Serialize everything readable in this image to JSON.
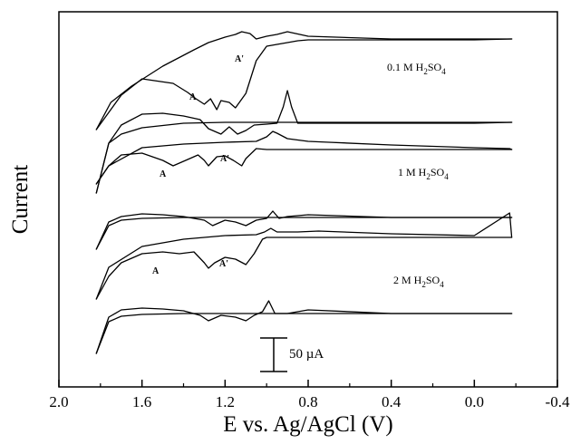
{
  "chart_data": {
    "type": "line",
    "title": "",
    "xlabel": "E vs. Ag/AgCl (V)",
    "ylabel": "Current",
    "xlim": [
      2.0,
      -0.4
    ],
    "x_ticks": [
      "2.0",
      "1.6",
      "1.2",
      "0.8",
      "0.4",
      "0.0",
      "-0.4"
    ],
    "x_tick_values": [
      2.0,
      1.6,
      1.2,
      0.8,
      0.4,
      0.0,
      -0.4
    ],
    "y_ticks": [],
    "grid": false,
    "legend": "none",
    "scale_bar": {
      "label": "50 µA",
      "value": 50,
      "unit": "µA"
    },
    "panels": [
      {
        "electrolyte_label": "0.1 M H2SO4",
        "electrolyte_text": "0.1 M H",
        "electrolyte_sub": "2",
        "electrolyte_tail": "SO",
        "electrolyte_sub2": "4",
        "peak_labels": [
          "A",
          "A'"
        ],
        "anodic_first_x": [
          1.82,
          1.7,
          1.6,
          1.45,
          1.38,
          1.34,
          1.3,
          1.27,
          1.24,
          1.22,
          1.18,
          1.15,
          1.1,
          1.05,
          1.0,
          0.95,
          0.9,
          0.85,
          0.8,
          0.4,
          0.0,
          -0.18
        ],
        "anodic_first_y": [
          -8,
          30,
          48,
          43,
          33,
          26,
          20,
          26,
          14,
          24,
          22,
          16,
          32,
          68,
          84,
          86,
          88,
          90,
          91,
          91,
          91,
          92
        ],
        "cathodic_first_x": [
          -0.18,
          0.0,
          0.4,
          0.8,
          0.9,
          0.95,
          1.0,
          1.05,
          1.08,
          1.12,
          1.15,
          1.2,
          1.28,
          1.35,
          1.5,
          1.65,
          1.75,
          1.82
        ],
        "cathodic_first_y": [
          92,
          92,
          92,
          95,
          100,
          97,
          95,
          92,
          98,
          100,
          97,
          94,
          88,
          80,
          62,
          40,
          22,
          -8
        ],
        "anodic_second_x": [
          1.82,
          1.76,
          1.7,
          1.6,
          1.5,
          1.4,
          1.32,
          1.28,
          1.22,
          1.18,
          1.14,
          1.1,
          1.06,
          1.0,
          0.95,
          0.92,
          0.9,
          0.88,
          0.85,
          0.4,
          0.0,
          -0.18
        ],
        "anodic_second_y": [
          -55,
          0,
          20,
          32,
          33,
          30,
          26,
          16,
          10,
          18,
          10,
          14,
          20,
          21,
          22,
          40,
          58,
          40,
          22,
          22,
          22,
          23
        ],
        "cathodic_second_x": [
          -0.18,
          0.4,
          0.8,
          1.1,
          1.2,
          1.4,
          1.6,
          1.7,
          1.76,
          1.82
        ],
        "cathodic_second_y": [
          23,
          23,
          23,
          23,
          23,
          22,
          17,
          10,
          0,
          -55
        ]
      },
      {
        "electrolyte_label": "1 M H2SO4",
        "electrolyte_text": "1 M H",
        "electrolyte_sub": "2",
        "electrolyte_tail": "SO",
        "electrolyte_sub2": "4",
        "peak_labels": [
          "A",
          "A'"
        ],
        "anodic_first_x": [
          1.82,
          1.76,
          1.7,
          1.6,
          1.5,
          1.45,
          1.38,
          1.33,
          1.3,
          1.28,
          1.24,
          1.2,
          1.16,
          1.12,
          1.1,
          1.05,
          1.0,
          0.95,
          0.9,
          0.4,
          0.0,
          -0.18
        ],
        "anodic_first_y": [
          -10,
          10,
          22,
          24,
          16,
          10,
          17,
          22,
          16,
          10,
          20,
          21,
          16,
          10,
          18,
          29,
          28,
          28,
          28,
          28,
          28,
          28
        ],
        "cathodic_first_x": [
          -0.18,
          -0.17,
          0.0,
          0.4,
          0.7,
          0.8,
          0.9,
          0.95,
          0.97,
          1.0,
          1.05,
          1.2,
          1.4,
          1.6,
          1.76,
          1.82
        ],
        "cathodic_first_y": [
          28,
          29,
          30,
          33,
          36,
          37,
          40,
          46,
          48,
          42,
          37,
          36,
          34,
          30,
          10,
          -10
        ],
        "anodic_second_x": [
          1.82,
          1.76,
          1.7,
          1.6,
          1.5,
          1.4,
          1.3,
          1.26,
          1.2,
          1.15,
          1.1,
          1.05,
          1.0,
          0.97,
          0.94,
          0.9,
          0.8,
          0.4,
          0.0,
          -0.18
        ],
        "anodic_second_y": [
          -30,
          0,
          6,
          9,
          8,
          6,
          2,
          -4,
          2,
          0,
          -4,
          2,
          4,
          12,
          4,
          6,
          8,
          5,
          5,
          5
        ],
        "cathodic_second_x": [
          -0.18,
          0.4,
          1.0,
          1.4,
          1.6,
          1.7,
          1.76,
          1.82
        ],
        "cathodic_second_y": [
          5,
          5,
          5,
          5,
          4,
          2,
          -4,
          -30
        ]
      },
      {
        "electrolyte_label": "2 M H2SO4",
        "electrolyte_text": "2 M H",
        "electrolyte_sub": "2",
        "electrolyte_tail": "SO",
        "electrolyte_sub2": "4",
        "peak_labels": [
          "A",
          "A'"
        ],
        "anodic_first_x": [
          1.82,
          1.76,
          1.7,
          1.6,
          1.5,
          1.42,
          1.35,
          1.3,
          1.28,
          1.25,
          1.2,
          1.15,
          1.1,
          1.06,
          1.02,
          1.0,
          0.9,
          0.4,
          0.0,
          -0.18
        ],
        "anodic_first_y": [
          -20,
          5,
          20,
          30,
          32,
          30,
          32,
          20,
          14,
          20,
          26,
          24,
          18,
          30,
          46,
          48,
          48,
          48,
          48,
          48
        ],
        "cathodic_first_x": [
          -0.18,
          -0.17,
          0.0,
          0.4,
          0.75,
          0.85,
          0.95,
          0.98,
          1.01,
          1.05,
          1.2,
          1.4,
          1.6,
          1.76,
          1.82
        ],
        "cathodic_first_y": [
          48,
          75,
          50,
          52,
          55,
          54,
          54,
          58,
          54,
          51,
          50,
          46,
          38,
          15,
          -20
        ],
        "anodic_second_x": [
          1.82,
          1.76,
          1.7,
          1.6,
          1.5,
          1.4,
          1.32,
          1.28,
          1.22,
          1.15,
          1.1,
          1.06,
          1.02,
          0.99,
          0.96,
          0.9,
          0.8,
          0.4,
          0.0,
          -0.18
        ],
        "anodic_second_y": [
          -40,
          0,
          8,
          10,
          9,
          7,
          2,
          -4,
          2,
          0,
          -4,
          2,
          6,
          18,
          4,
          4,
          8,
          4,
          4,
          4
        ],
        "cathodic_second_x": [
          -0.18,
          0.4,
          1.0,
          1.4,
          1.6,
          1.7,
          1.76,
          1.82
        ],
        "cathodic_second_y": [
          4,
          4,
          4,
          4,
          3,
          1,
          -5,
          -40
        ]
      }
    ]
  }
}
